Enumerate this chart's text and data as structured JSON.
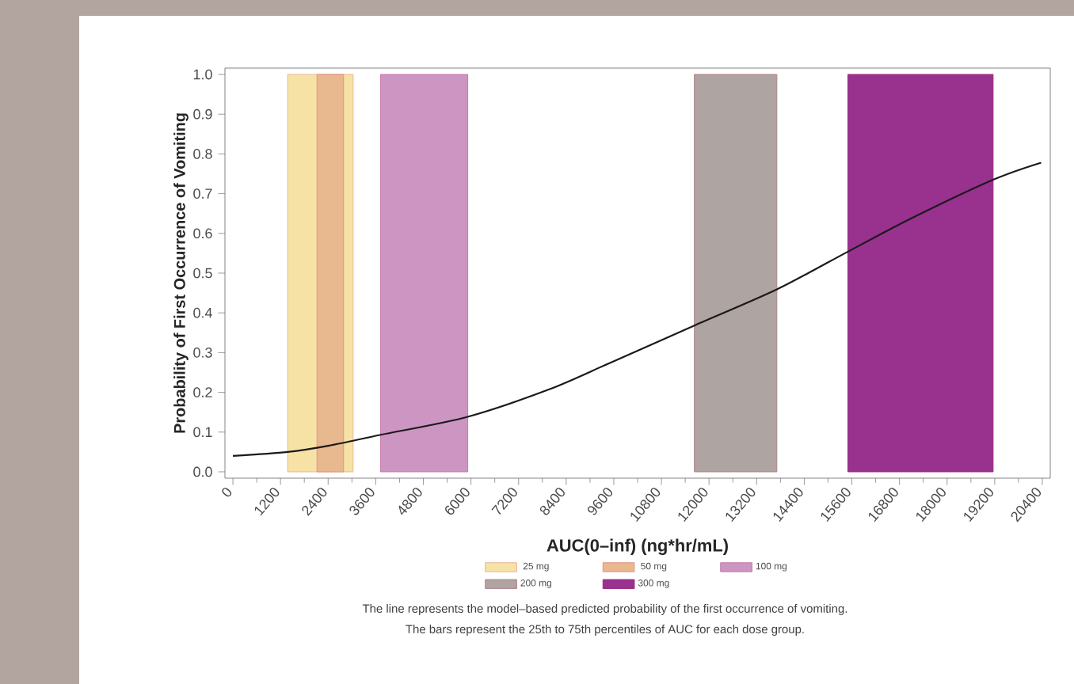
{
  "chart_data": {
    "type": "line",
    "xlabel": "AUC(0–inf) (ng*hr/mL)",
    "ylabel": "Probability of First Occurrence of Vomiting",
    "x": [
      0,
      1380,
      2430,
      3720,
      5900,
      7960,
      9480,
      11630,
      13710,
      15500,
      17060,
      19160,
      20370
    ],
    "values": [
      0.04,
      0.05,
      0.066,
      0.093,
      0.138,
      0.207,
      0.273,
      0.368,
      0.459,
      0.554,
      0.636,
      0.735,
      0.778
    ],
    "color": "#1a1a1a",
    "xlim": [
      -200,
      20600
    ],
    "ylim": [
      -0.016,
      1.016
    ],
    "xticks": [
      0,
      1200,
      2400,
      3600,
      4800,
      6000,
      7200,
      8400,
      9600,
      10800,
      12000,
      13200,
      14400,
      15600,
      16800,
      18000,
      19200,
      20400
    ],
    "yticks": [
      {
        "value": 0,
        "label": "0.0"
      },
      {
        "value": 0.1,
        "label": "0.1"
      },
      {
        "value": 0.2,
        "label": "0.2"
      },
      {
        "value": 0.3,
        "label": "0.3"
      },
      {
        "value": 0.4,
        "label": "0.4"
      },
      {
        "value": 0.5,
        "label": "0.5"
      },
      {
        "value": 0.6,
        "label": "0.6"
      },
      {
        "value": 0.7,
        "label": "0.7"
      },
      {
        "value": 0.8,
        "label": "0.8"
      },
      {
        "value": 0.9,
        "label": "0.9"
      },
      {
        "value": 1,
        "label": "1.0"
      }
    ],
    "bands": [
      {
        "axis": "x",
        "from": 1380,
        "to": 3030,
        "label": "25 mg",
        "color": "#f7e2a6"
      },
      {
        "axis": "x",
        "from": 2120,
        "to": 2790,
        "label": "50 mg",
        "color": "#e8b88f"
      },
      {
        "axis": "x",
        "from": 3720,
        "to": 5920,
        "label": "100 mg",
        "color": "#cc95c2"
      },
      {
        "axis": "x",
        "from": 11630,
        "to": 13710,
        "label": "200 mg",
        "color": "#aea4a2"
      },
      {
        "axis": "x",
        "from": 15500,
        "to": 19160,
        "label": "300 mg",
        "color": "#99318e"
      }
    ],
    "legend": "bottom",
    "annotations": [
      "The line represents the model–based predicted probability of the first occurrence of vomiting.",
      "The bars represent the 25th to 75th percentiles of AUC for each dose group."
    ]
  }
}
